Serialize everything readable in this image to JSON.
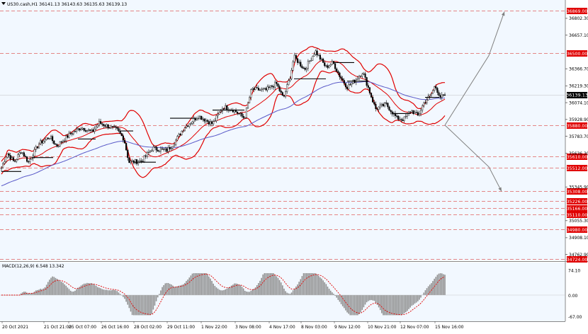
{
  "header": {
    "symbol_info": "US30.cash,H1  36141.13 36143.63 36135.63 36139.13"
  },
  "macd": {
    "label": "MACD(12,26,9) 6.548 13.342",
    "ticks": [
      "74.10",
      "0.00",
      "-67.00"
    ]
  },
  "colors": {
    "background": "#f2f8ff",
    "candle": "#000000",
    "bollinger": "#e00000",
    "ma": "#5a5ac8",
    "level_line": "#e06060",
    "level_tag": "#e00000",
    "macd_hist": "#909090",
    "macd_signal": "#e00000"
  },
  "chart_data": {
    "type": "candlestick",
    "current_price": "36139.13",
    "y_ticks": [
      "36802.30",
      "36657.10",
      "36366.70",
      "36219.30",
      "36074.10",
      "35928.90",
      "35783.70",
      "35636.30",
      "35345.90",
      "35055.30",
      "34908.10",
      "34762.90"
    ],
    "levels": [
      {
        "value": 36869.0,
        "label": "36869.00"
      },
      {
        "value": 36500.0,
        "label": "36500.00"
      },
      {
        "value": 35880.0,
        "label": "35880.00"
      },
      {
        "value": 35610.0,
        "label": "35610.00"
      },
      {
        "value": 35512.0,
        "label": "35512.00"
      },
      {
        "value": 35308.0,
        "label": "35308.00"
      },
      {
        "value": 35226.0,
        "label": "35226.00"
      },
      {
        "value": 35166.0,
        "label": "35166.00"
      },
      {
        "value": 35110.0,
        "label": "35110.00"
      },
      {
        "value": 34980.0,
        "label": "34980.00"
      },
      {
        "value": 34724.0,
        "label": "34724.00"
      }
    ],
    "x_labels": [
      "20 Oct 2021",
      "21 Oct 21:00",
      "25 Oct 07:00",
      "26 Oct 16:00",
      "28 Oct 02:00",
      "29 Oct 11:00",
      "1 Nov 22:00",
      "3 Nov 08:00",
      "4 Nov 17:00",
      "8 Nov 03:00",
      "9 Nov 12:00",
      "10 Nov 21:00",
      "12 Nov 07:00",
      "15 Nov 16:00"
    ],
    "anchors": [
      [
        0,
        35480
      ],
      [
        10,
        35640
      ],
      [
        20,
        35560
      ],
      [
        30,
        35660
      ],
      [
        40,
        35560
      ],
      [
        55,
        35720
      ],
      [
        70,
        35780
      ],
      [
        80,
        35700
      ],
      [
        100,
        35810
      ],
      [
        115,
        35860
      ],
      [
        130,
        35820
      ],
      [
        140,
        35900
      ],
      [
        165,
        35840
      ],
      [
        175,
        35760
      ],
      [
        182,
        35560
      ],
      [
        200,
        35570
      ],
      [
        215,
        35680
      ],
      [
        235,
        35660
      ],
      [
        245,
        35720
      ],
      [
        260,
        35860
      ],
      [
        280,
        35960
      ],
      [
        300,
        35890
      ],
      [
        315,
        36040
      ],
      [
        330,
        36010
      ],
      [
        345,
        35940
      ],
      [
        355,
        36190
      ],
      [
        375,
        36180
      ],
      [
        390,
        36240
      ],
      [
        400,
        36110
      ],
      [
        410,
        36310
      ],
      [
        415,
        36470
      ],
      [
        430,
        36360
      ],
      [
        445,
        36520
      ],
      [
        460,
        36380
      ],
      [
        470,
        36420
      ],
      [
        480,
        36300
      ],
      [
        490,
        36210
      ],
      [
        500,
        36260
      ],
      [
        512,
        36340
      ],
      [
        520,
        36200
      ],
      [
        530,
        36020
      ],
      [
        545,
        36060
      ],
      [
        560,
        35940
      ],
      [
        570,
        35930
      ],
      [
        580,
        36010
      ],
      [
        590,
        35960
      ],
      [
        598,
        36070
      ],
      [
        608,
        36140
      ],
      [
        614,
        36220
      ],
      [
        622,
        36120
      ],
      [
        628,
        36139
      ]
    ],
    "projection": {
      "start": [
        628,
        35880
      ],
      "up": [
        [
          690,
          36480
        ],
        [
          712,
          36860
        ]
      ],
      "down": [
        [
          690,
          35520
        ],
        [
          708,
          35308
        ]
      ]
    }
  }
}
